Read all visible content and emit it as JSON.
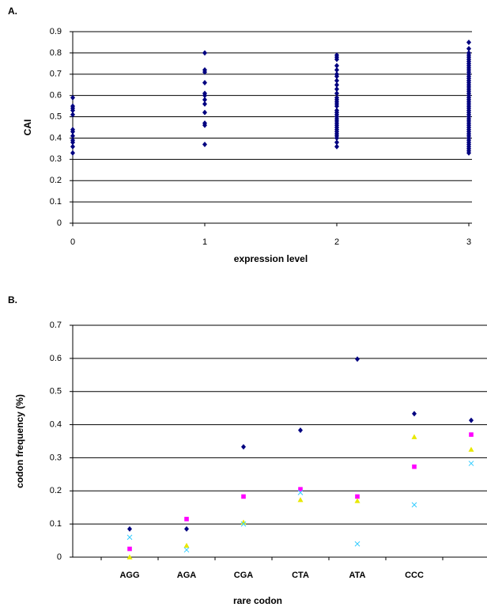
{
  "chart_data": [
    {
      "type": "scatter",
      "label": "A.",
      "xlabel": "expression level",
      "ylabel": "CAI",
      "xlim": [
        0,
        3
      ],
      "xticks": [
        0,
        1,
        2,
        3
      ],
      "ylim": [
        0,
        0.9
      ],
      "yticks": [
        0,
        0.1,
        0.2,
        0.3,
        0.4,
        0.5,
        0.6,
        0.7,
        0.8,
        0.9
      ],
      "grid": true,
      "color": "#000080",
      "marker": "diamond",
      "x": [
        0,
        0,
        0,
        0,
        0,
        0,
        0,
        0,
        0,
        0,
        0,
        0,
        1,
        1,
        1,
        1,
        1,
        1,
        1,
        1,
        1,
        1,
        1,
        1,
        2,
        2,
        2,
        2,
        2,
        2,
        2,
        2,
        2,
        2,
        2,
        2,
        2,
        2,
        2,
        2,
        2,
        2,
        2,
        2,
        2,
        2,
        2,
        2,
        2,
        2,
        2,
        2,
        2,
        2,
        2,
        2,
        3,
        3,
        3,
        3,
        3,
        3,
        3,
        3,
        3,
        3,
        3,
        3,
        3,
        3,
        3,
        3,
        3,
        3,
        3,
        3,
        3,
        3,
        3,
        3,
        3,
        3,
        3,
        3,
        3,
        3,
        3,
        3,
        3,
        3,
        3,
        3,
        3,
        3,
        3,
        3,
        3,
        3,
        3,
        3,
        3,
        3,
        3,
        3,
        3,
        3
      ],
      "y": [
        0.33,
        0.36,
        0.38,
        0.39,
        0.41,
        0.43,
        0.44,
        0.51,
        0.53,
        0.54,
        0.55,
        0.59,
        0.37,
        0.46,
        0.47,
        0.52,
        0.56,
        0.58,
        0.6,
        0.61,
        0.66,
        0.71,
        0.72,
        0.8,
        0.36,
        0.38,
        0.4,
        0.41,
        0.42,
        0.43,
        0.44,
        0.45,
        0.46,
        0.47,
        0.48,
        0.49,
        0.5,
        0.51,
        0.52,
        0.53,
        0.55,
        0.56,
        0.57,
        0.58,
        0.59,
        0.61,
        0.63,
        0.65,
        0.67,
        0.69,
        0.7,
        0.72,
        0.74,
        0.77,
        0.78,
        0.79,
        0.33,
        0.34,
        0.35,
        0.36,
        0.37,
        0.38,
        0.39,
        0.4,
        0.41,
        0.42,
        0.43,
        0.44,
        0.45,
        0.46,
        0.47,
        0.48,
        0.49,
        0.5,
        0.51,
        0.52,
        0.53,
        0.54,
        0.55,
        0.56,
        0.57,
        0.58,
        0.59,
        0.6,
        0.61,
        0.62,
        0.63,
        0.64,
        0.65,
        0.66,
        0.67,
        0.68,
        0.69,
        0.7,
        0.71,
        0.72,
        0.73,
        0.74,
        0.75,
        0.76,
        0.77,
        0.78,
        0.79,
        0.8,
        0.82,
        0.85
      ]
    },
    {
      "type": "dot",
      "label": "B.",
      "xlabel": "rare codon",
      "ylabel": "codon frequency (%)",
      "categories": [
        "AGG",
        "AGA",
        "CGA",
        "CTA",
        "ATA",
        "CCC",
        null
      ],
      "ylim": [
        0,
        0.7
      ],
      "yticks": [
        0,
        0.1,
        0.2,
        0.3,
        0.4,
        0.5,
        0.6,
        0.7
      ],
      "grid": true,
      "series": [
        {
          "color": "#000080",
          "marker": "diamond",
          "values": [
            0.085,
            0.085,
            0.333,
            0.383,
            0.598,
            0.433,
            0.413
          ]
        },
        {
          "color": "#ff00ff",
          "marker": "square",
          "values": [
            0.025,
            0.115,
            0.183,
            0.205,
            0.183,
            0.273,
            0.37
          ]
        },
        {
          "color": "#e8e800",
          "marker": "triangle",
          "values": [
            0.0,
            0.035,
            0.105,
            0.173,
            0.17,
            0.363,
            0.325
          ]
        },
        {
          "color": "#33ccff",
          "marker": "x",
          "values": [
            0.06,
            0.022,
            0.1,
            0.195,
            0.04,
            0.158,
            0.283
          ]
        }
      ]
    }
  ]
}
